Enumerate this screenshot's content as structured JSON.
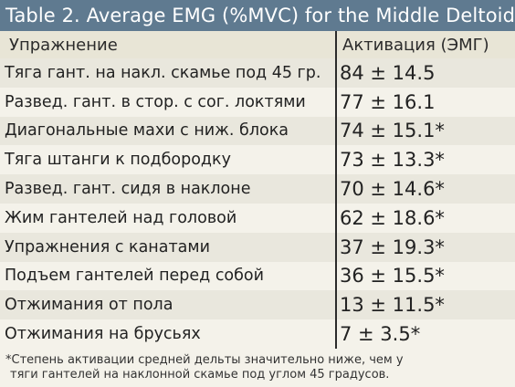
{
  "title": "Table 2. Average EMG (%MVC) for the Middle Deltoid",
  "header": {
    "exercise": "Упражнение",
    "activation": "Активация (ЭМГ)"
  },
  "rows": [
    {
      "exercise": "Тяга гант. на накл. скамье под 45 гр.",
      "activation": "84 ± 14.5"
    },
    {
      "exercise": "Развед. гант. в стор. с сог. локтями",
      "activation": "77 ± 16.1"
    },
    {
      "exercise": "Диагональные махи с ниж. блока",
      "activation": "74 ± 15.1*"
    },
    {
      "exercise": "Тяга штанги к подбородку",
      "activation": "73 ± 13.3*"
    },
    {
      "exercise": "Развед. гант. сидя в наклоне",
      "activation": "70 ± 14.6*"
    },
    {
      "exercise": "Жим гантелей над головой",
      "activation": "62 ± 18.6*"
    },
    {
      "exercise": "Упражнения с канатами",
      "activation": "37 ± 19.3*"
    },
    {
      "exercise": "Подъем гантелей перед собой",
      "activation": "36 ± 15.5*"
    },
    {
      "exercise": "Отжимания от пола",
      "activation": "13 ± 11.5*"
    },
    {
      "exercise": "Отжимания на брусьях",
      "activation": "7 ± 3.5*"
    }
  ],
  "footnote": {
    "line1": "*Степень активации средней дельты значительно ниже, чем у",
    "line2": "тяги гантелей на наклонной скамье под углом 45 градусов."
  },
  "colors": {
    "title_bar": "#5f7a90",
    "header_bg": "#e8e5d6",
    "row_alt": "#e9e7dd",
    "row_plain": "#f4f2ea"
  }
}
